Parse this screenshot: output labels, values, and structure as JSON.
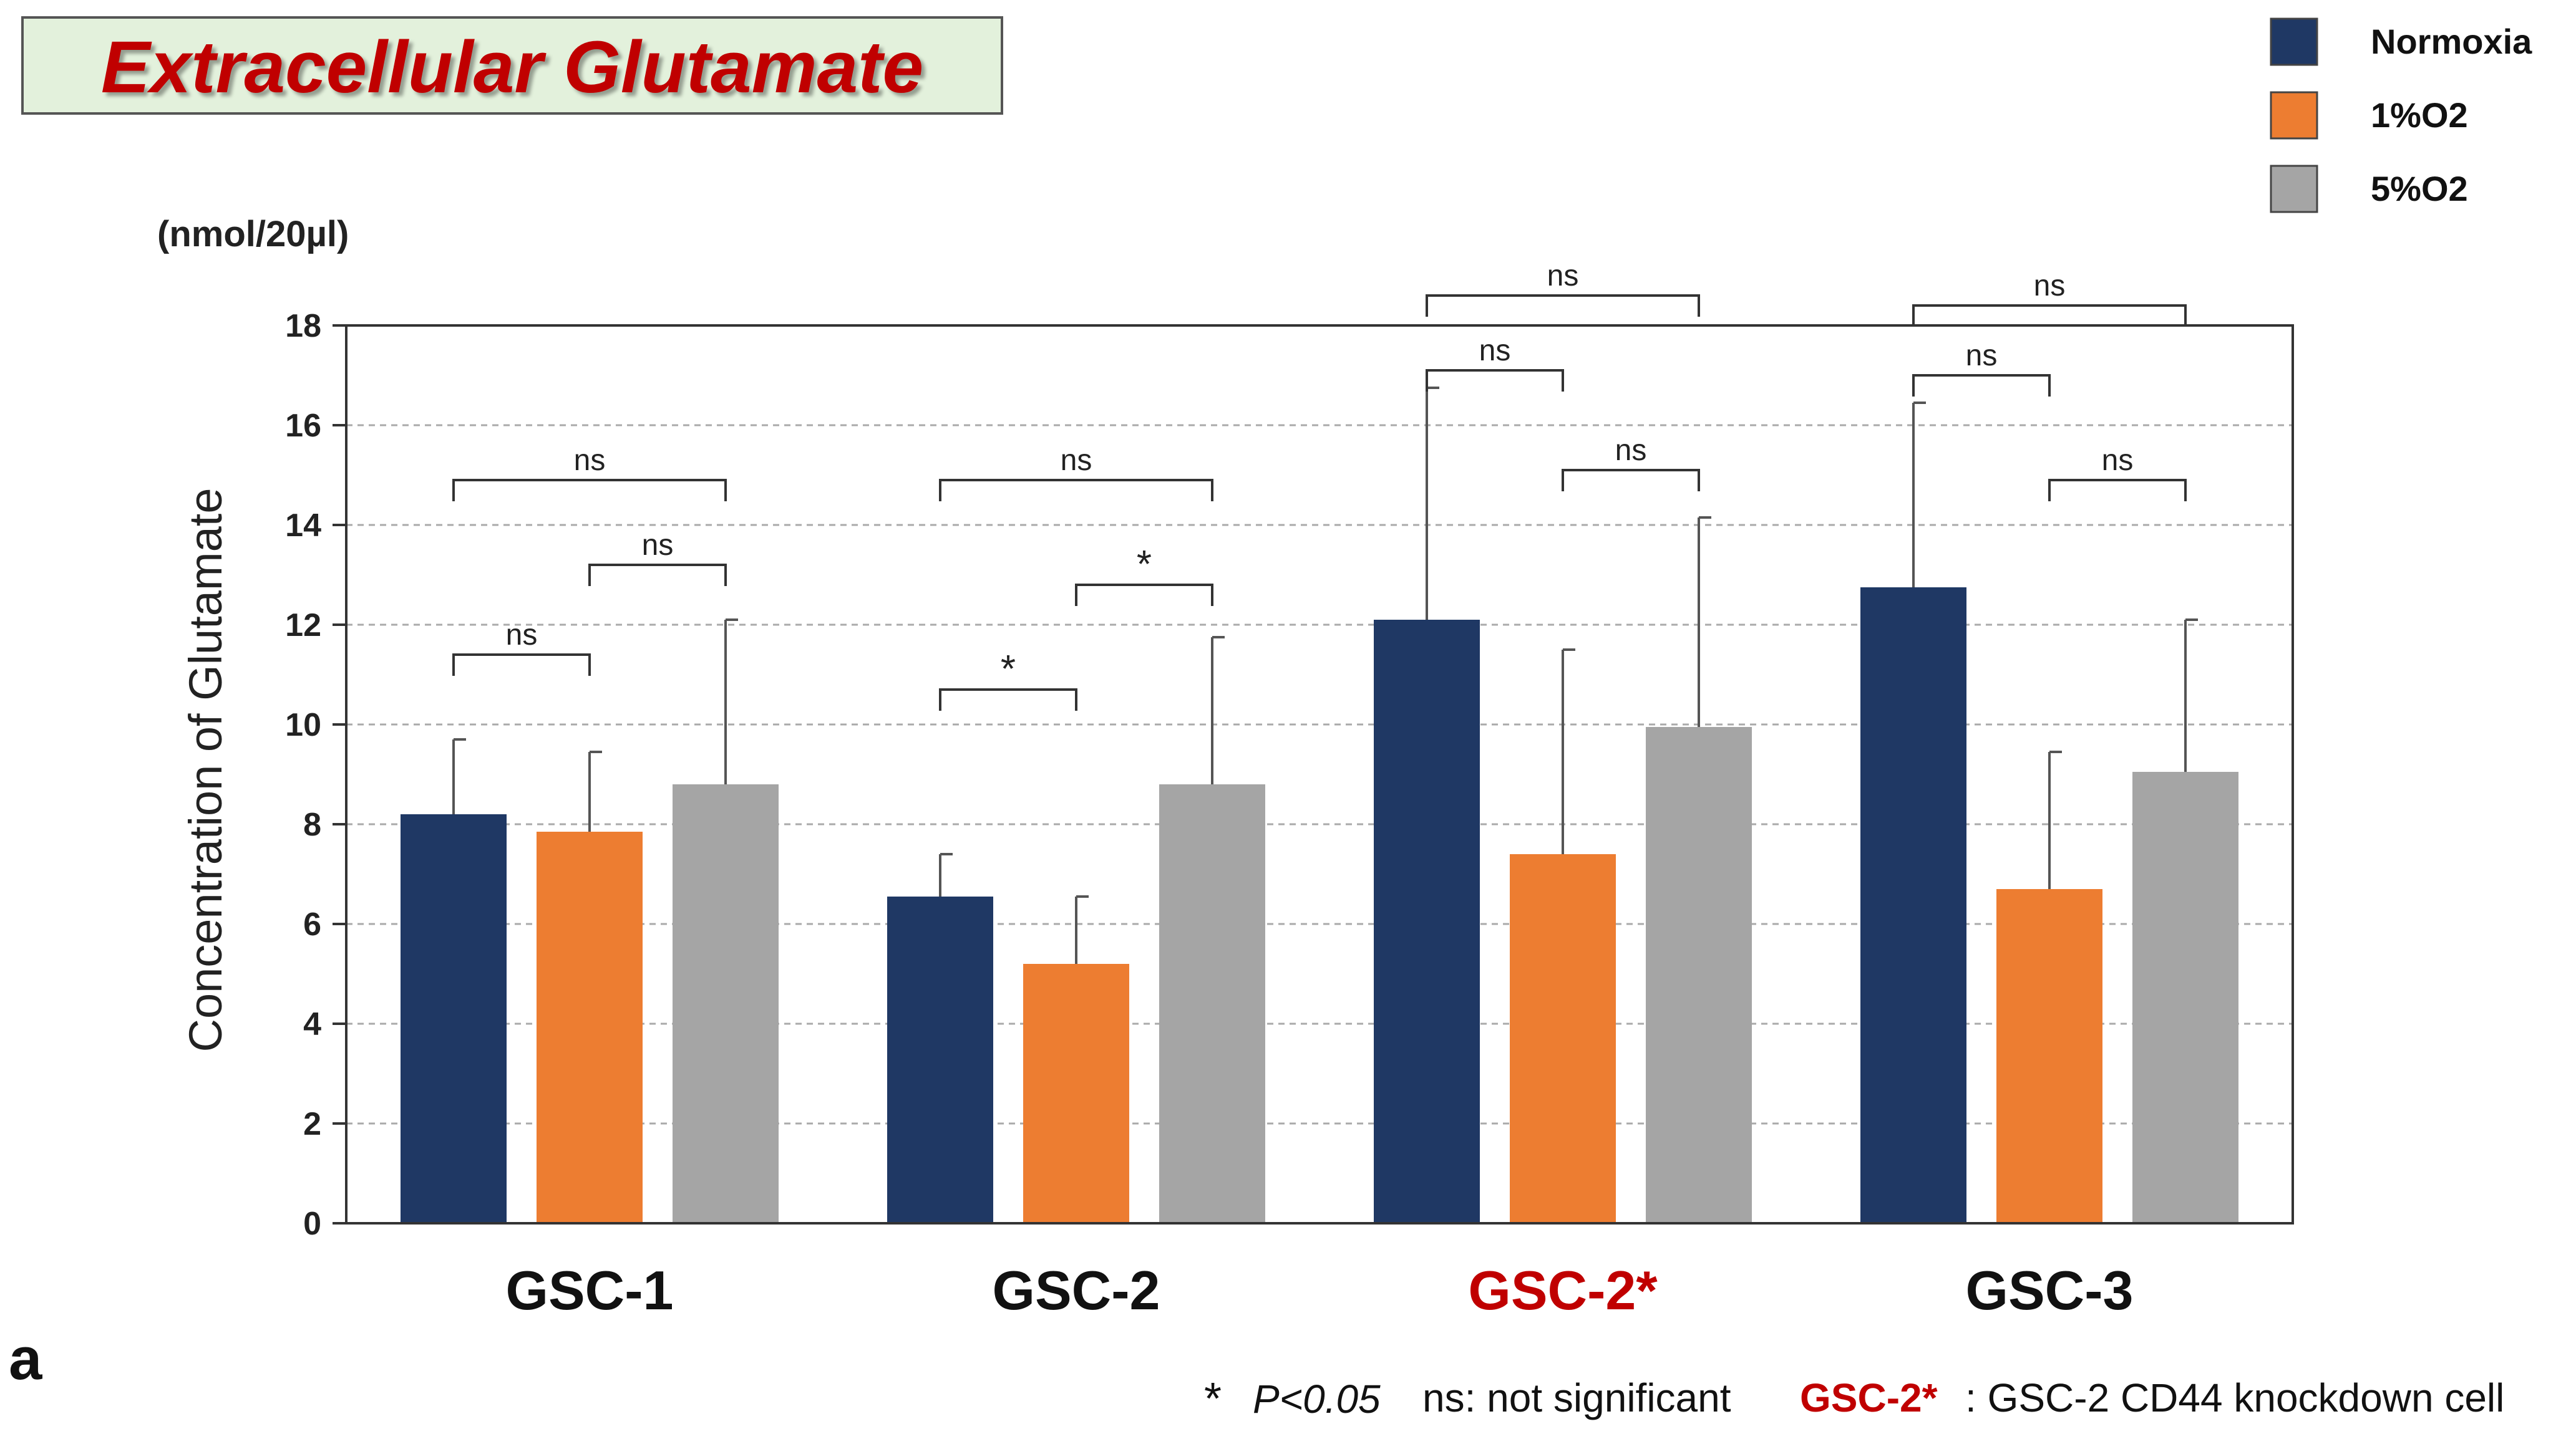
{
  "chart_data": {
    "type": "bar",
    "title": "Extracellular Glutamate",
    "unit_label": "(nmol/20µl)",
    "ylabel": "Concentration of Glutamate",
    "xlabel": "",
    "ylim": [
      0,
      18
    ],
    "yticks": [
      0,
      2,
      4,
      6,
      8,
      10,
      12,
      14,
      16,
      18
    ],
    "categories": [
      "GSC-1",
      "GSC-2",
      "GSC-2*",
      "GSC-3"
    ],
    "highlight_category": "GSC-2*",
    "series": [
      {
        "name": "Normoxia",
        "color": "#1f3864",
        "values": [
          8.2,
          6.55,
          12.1,
          12.75
        ],
        "errors": [
          1.5,
          0.85,
          4.65,
          3.7
        ]
      },
      {
        "name": "1%O2",
        "color": "#ed7d31",
        "values": [
          7.85,
          5.2,
          7.4,
          6.7
        ],
        "errors": [
          1.6,
          1.35,
          4.1,
          2.75
        ]
      },
      {
        "name": "5%O2",
        "color": "#a5a5a5",
        "values": [
          8.8,
          8.8,
          9.95,
          9.05
        ],
        "errors": [
          3.3,
          2.95,
          4.2,
          3.05
        ]
      }
    ],
    "significance": [
      {
        "category": 0,
        "from": 0,
        "to": 1,
        "label": "ns",
        "y": 11.4
      },
      {
        "category": 0,
        "from": 1,
        "to": 2,
        "label": "ns",
        "y": 13.2
      },
      {
        "category": 0,
        "from": 0,
        "to": 2,
        "label": "ns",
        "y": 14.9
      },
      {
        "category": 1,
        "from": 0,
        "to": 1,
        "label": "*",
        "y": 10.7
      },
      {
        "category": 1,
        "from": 1,
        "to": 2,
        "label": "*",
        "y": 12.8
      },
      {
        "category": 1,
        "from": 0,
        "to": 2,
        "label": "ns",
        "y": 14.9
      },
      {
        "category": 2,
        "from": 0,
        "to": 1,
        "label": "ns",
        "y": 17.1
      },
      {
        "category": 2,
        "from": 1,
        "to": 2,
        "label": "ns",
        "y": 15.1
      },
      {
        "category": 2,
        "from": 0,
        "to": 2,
        "label": "ns",
        "y": 18.6
      },
      {
        "category": 3,
        "from": 0,
        "to": 1,
        "label": "ns",
        "y": 17.0
      },
      {
        "category": 3,
        "from": 1,
        "to": 2,
        "label": "ns",
        "y": 14.9
      },
      {
        "category": 3,
        "from": 0,
        "to": 2,
        "label": "ns",
        "y": 18.4
      }
    ],
    "legend_position": "top-right",
    "grid": true
  },
  "panel_label": "a",
  "footnote": {
    "sig_symbol": "*",
    "sig_text": "P<0.05",
    "ns_text": "ns: not significant",
    "highlight_name": "GSC-2*",
    "highlight_desc": ": GSC-2 CD44 knockdown cell"
  }
}
